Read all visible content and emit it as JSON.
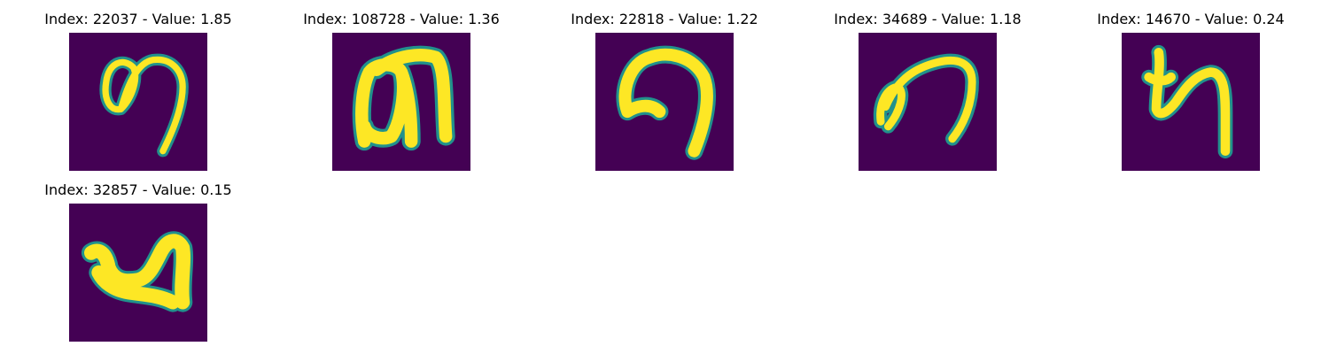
{
  "colors": {
    "background": "#440154",
    "stroke_edge": "#21918c",
    "stroke_core": "#fde725"
  },
  "panels": [
    {
      "title": "Index: 22037 - Value: 1.85",
      "glyph": "glyph-a"
    },
    {
      "title": "Index: 108728 - Value: 1.36",
      "glyph": "glyph-b"
    },
    {
      "title": "Index: 22818 - Value: 1.22",
      "glyph": "glyph-c"
    },
    {
      "title": "Index: 34689 - Value: 1.18",
      "glyph": "glyph-d"
    },
    {
      "title": "Index: 14670 - Value: 0.24",
      "glyph": "glyph-e"
    },
    {
      "title": "Index: 32857 - Value: 0.15",
      "glyph": "glyph-f"
    }
  ]
}
